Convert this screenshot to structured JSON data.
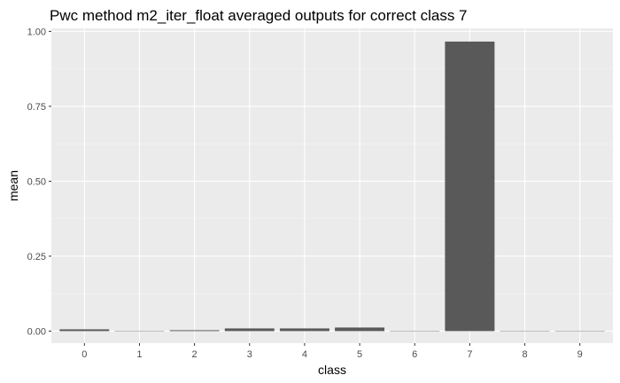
{
  "chart_data": {
    "type": "bar",
    "title": "Pwc method m2_iter_float averaged outputs for correct class 7",
    "xlabel": "class",
    "ylabel": "mean",
    "categories": [
      "0",
      "1",
      "2",
      "3",
      "4",
      "5",
      "6",
      "7",
      "8",
      "9"
    ],
    "values": [
      0.006,
      0.0005,
      0.003,
      0.009,
      0.009,
      0.012,
      0.0005,
      0.966,
      0.0005,
      0.0005
    ],
    "ylim": [
      -0.04,
      1.01
    ],
    "yticks": [
      0.0,
      0.25,
      0.5,
      0.75,
      1.0
    ],
    "ytick_labels": [
      "0.00",
      "0.25",
      "0.50",
      "0.75",
      "1.00"
    ],
    "grid": true,
    "legend": "none",
    "colors": {
      "panel_background": "#ebebeb",
      "grid_major": "#ffffff",
      "grid_minor": "#f4f4f4",
      "bar_fill": "#595959",
      "tick_label": "#4d4d4d",
      "tick_mark": "#333333"
    }
  }
}
